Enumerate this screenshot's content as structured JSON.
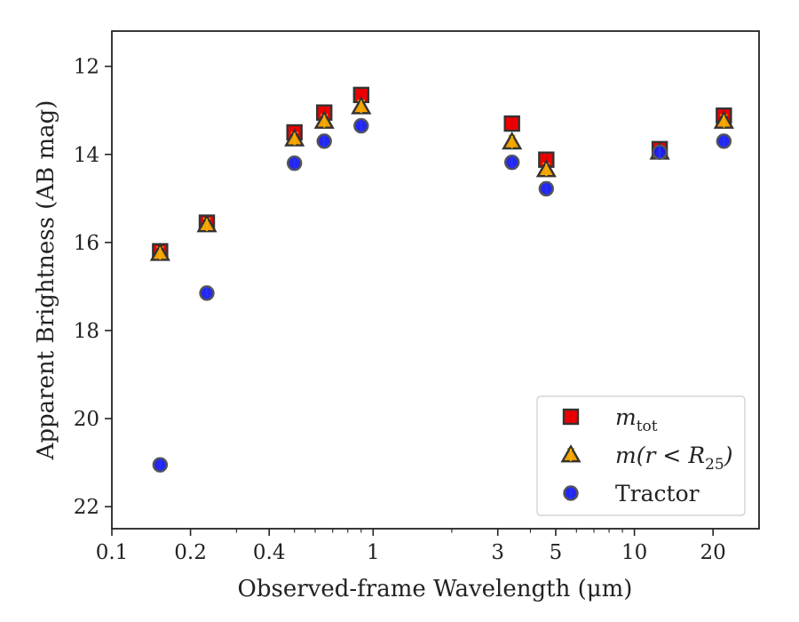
{
  "chart_data": {
    "type": "scatter",
    "xlabel": "Observed-frame Wavelength (μm)",
    "ylabel": "Apparent Brightness (AB mag)",
    "xscale": "log",
    "xlim": [
      0.1,
      30
    ],
    "ylim": [
      22.5,
      11.2
    ],
    "y_inverted": true,
    "grid": false,
    "legend_position": "lower-right",
    "x_ticks": [
      0.1,
      0.2,
      0.4,
      1,
      3,
      5,
      10,
      20
    ],
    "x_tick_labels": [
      "0.1",
      "0.2",
      "0.4",
      "1",
      "3",
      "5",
      "10",
      "20"
    ],
    "y_ticks": [
      12,
      14,
      16,
      18,
      20,
      22
    ],
    "y_tick_labels": [
      "12",
      "14",
      "16",
      "18",
      "20",
      "22"
    ],
    "series": [
      {
        "name": "m_tot",
        "legend_main": "m",
        "legend_sub": "tot",
        "legend_tail": "",
        "marker": "square",
        "color": "#ee0000",
        "errcolor": "#dd0000",
        "x": [
          0.153,
          0.231,
          0.5,
          0.65,
          0.9,
          3.4,
          4.6,
          12.5,
          22.0
        ],
        "y": [
          16.2,
          15.55,
          13.5,
          13.05,
          12.65,
          13.3,
          14.12,
          13.88,
          13.12
        ]
      },
      {
        "name": "m(r < R_25)",
        "legend_main": "m(r < R",
        "legend_sub": "25",
        "legend_tail": ")",
        "marker": "triangle",
        "color": "#f5a000",
        "errcolor": "#f0b000",
        "x": [
          0.153,
          0.231,
          0.5,
          0.65,
          0.9,
          3.4,
          4.6,
          12.5,
          22.0
        ],
        "y": [
          16.25,
          15.6,
          13.65,
          13.25,
          12.92,
          13.72,
          14.35,
          13.95,
          13.25
        ]
      },
      {
        "name": "Tractor",
        "legend_main": "Tractor",
        "legend_sub": "",
        "legend_tail": "",
        "marker": "circle",
        "color": "#1a1aee",
        "errcolor": "#2233ff",
        "x": [
          0.153,
          0.231,
          0.5,
          0.65,
          0.9,
          3.4,
          4.6,
          12.5,
          22.0
        ],
        "y": [
          21.05,
          17.15,
          14.2,
          13.7,
          13.35,
          14.18,
          14.78,
          13.95,
          13.7
        ]
      }
    ]
  }
}
